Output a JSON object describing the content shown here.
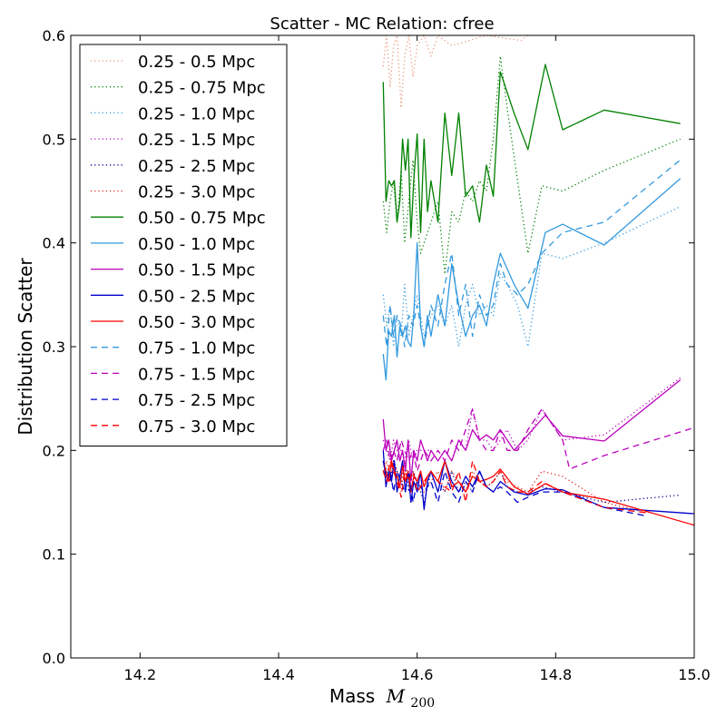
{
  "chart_data": {
    "type": "line",
    "title": "Scatter - MC Relation: cfree",
    "xlabel": "Mass",
    "xlabel_math": "M",
    "xlabel_sub": "200",
    "ylabel": "Distribution Scatter",
    "xlim": [
      14.1,
      15.0
    ],
    "ylim": [
      0.0,
      0.6
    ],
    "xticks": [
      "14.2",
      "14.4",
      "14.6",
      "14.8",
      "15.0"
    ],
    "yticks": [
      "0.0",
      "0.1",
      "0.2",
      "0.3",
      "0.4",
      "0.5",
      "0.6"
    ],
    "grid": false,
    "legend_position": "top-left",
    "series": [
      {
        "name": "0.25 - 0.5 Mpc",
        "color": "#e9967a",
        "dash": "dotted",
        "x": [
          14.551,
          14.556,
          14.561,
          14.566,
          14.571,
          14.577,
          14.582,
          14.588,
          14.594,
          14.6,
          14.61,
          14.62,
          14.63,
          14.65,
          14.7,
          14.75,
          14.76
        ],
        "y": [
          0.57,
          0.6,
          0.55,
          0.59,
          0.6,
          0.53,
          0.58,
          0.6,
          0.56,
          0.59,
          0.6,
          0.58,
          0.6,
          0.59,
          0.6,
          0.595,
          0.6
        ]
      },
      {
        "name": "0.25 - 0.75 Mpc",
        "color": "#008000",
        "dash": "dotted",
        "x": [
          14.551,
          14.556,
          14.561,
          14.566,
          14.571,
          14.577,
          14.582,
          14.588,
          14.594,
          14.6,
          14.605,
          14.61,
          14.62,
          14.63,
          14.64,
          14.65,
          14.66,
          14.67,
          14.68,
          14.69,
          14.7,
          14.71,
          14.72,
          14.73,
          14.745,
          14.76,
          14.78,
          14.81,
          14.87,
          14.98
        ],
        "y": [
          0.44,
          0.41,
          0.44,
          0.46,
          0.42,
          0.47,
          0.4,
          0.44,
          0.48,
          0.42,
          0.39,
          0.4,
          0.42,
          0.44,
          0.37,
          0.43,
          0.42,
          0.45,
          0.44,
          0.46,
          0.45,
          0.5,
          0.58,
          0.53,
          0.46,
          0.39,
          0.455,
          0.45,
          0.47,
          0.5
        ]
      },
      {
        "name": "0.25 - 1.0 Mpc",
        "color": "#3399dd",
        "dash": "dotted",
        "x": [
          14.551,
          14.556,
          14.561,
          14.566,
          14.571,
          14.577,
          14.582,
          14.588,
          14.594,
          14.6,
          14.61,
          14.62,
          14.63,
          14.64,
          14.65,
          14.66,
          14.67,
          14.68,
          14.69,
          14.7,
          14.71,
          14.72,
          14.73,
          14.745,
          14.76,
          14.78,
          14.81,
          14.87,
          14.98
        ],
        "y": [
          0.35,
          0.32,
          0.34,
          0.3,
          0.33,
          0.31,
          0.36,
          0.31,
          0.33,
          0.35,
          0.31,
          0.33,
          0.34,
          0.32,
          0.34,
          0.3,
          0.34,
          0.36,
          0.33,
          0.34,
          0.33,
          0.37,
          0.36,
          0.34,
          0.3,
          0.39,
          0.385,
          0.4,
          0.435
        ]
      },
      {
        "name": "0.25 - 1.5 Mpc",
        "color": "#bb00bb",
        "dash": "dotted",
        "x": [
          14.551,
          14.556,
          14.561,
          14.566,
          14.571,
          14.577,
          14.582,
          14.588,
          14.594,
          14.6,
          14.61,
          14.62,
          14.63,
          14.64,
          14.65,
          14.66,
          14.67,
          14.68,
          14.69,
          14.7,
          14.71,
          14.72,
          14.73,
          14.745,
          14.76,
          14.78,
          14.81,
          14.87,
          14.98
        ],
        "y": [
          0.21,
          0.2,
          0.19,
          0.21,
          0.2,
          0.2,
          0.19,
          0.21,
          0.19,
          0.2,
          0.2,
          0.2,
          0.19,
          0.2,
          0.19,
          0.21,
          0.2,
          0.24,
          0.21,
          0.21,
          0.2,
          0.21,
          0.22,
          0.2,
          0.21,
          0.24,
          0.21,
          0.215,
          0.27
        ]
      },
      {
        "name": "0.25 - 2.5 Mpc",
        "color": "#000099",
        "dash": "dotted",
        "x": [
          14.551,
          14.556,
          14.561,
          14.566,
          14.571,
          14.577,
          14.582,
          14.588,
          14.594,
          14.6,
          14.61,
          14.62,
          14.63,
          14.64,
          14.65,
          14.66,
          14.67,
          14.68,
          14.69,
          14.7,
          14.71,
          14.72,
          14.73,
          14.745,
          14.76,
          14.78,
          14.81,
          14.87,
          14.98
        ],
        "y": [
          0.19,
          0.18,
          0.17,
          0.19,
          0.18,
          0.17,
          0.19,
          0.16,
          0.18,
          0.17,
          0.15,
          0.18,
          0.17,
          0.16,
          0.18,
          0.16,
          0.17,
          0.16,
          0.18,
          0.165,
          0.17,
          0.18,
          0.165,
          0.16,
          0.16,
          0.165,
          0.16,
          0.15,
          0.157
        ]
      },
      {
        "name": "0.25 - 3.0 Mpc",
        "color": "#dd2222",
        "dash": "dotted",
        "x": [
          14.551,
          14.556,
          14.561,
          14.566,
          14.571,
          14.577,
          14.582,
          14.588,
          14.594,
          14.6,
          14.61,
          14.62,
          14.63,
          14.64,
          14.65,
          14.66,
          14.67,
          14.68,
          14.69,
          14.7,
          14.71,
          14.72,
          14.73,
          14.745,
          14.76,
          14.78,
          14.81,
          14.87,
          14.93
        ],
        "y": [
          0.18,
          0.19,
          0.17,
          0.19,
          0.18,
          0.16,
          0.19,
          0.17,
          0.18,
          0.17,
          0.16,
          0.17,
          0.18,
          0.16,
          0.18,
          0.17,
          0.16,
          0.18,
          0.17,
          0.165,
          0.17,
          0.18,
          0.17,
          0.165,
          0.16,
          0.18,
          0.175,
          0.15,
          0.14
        ]
      },
      {
        "name": "0.50 - 0.75 Mpc",
        "color": "#008000",
        "dash": "solid",
        "x": [
          14.551,
          14.555,
          14.559,
          14.563,
          14.567,
          14.571,
          14.575,
          14.579,
          14.583,
          14.587,
          14.591,
          14.595,
          14.6,
          14.605,
          14.61,
          14.615,
          14.62,
          14.63,
          14.64,
          14.65,
          14.66,
          14.67,
          14.68,
          14.69,
          14.7,
          14.71,
          14.72,
          14.74,
          14.76,
          14.785,
          14.81,
          14.87,
          14.98
        ],
        "y": [
          0.555,
          0.44,
          0.46,
          0.455,
          0.46,
          0.42,
          0.44,
          0.5,
          0.47,
          0.5,
          0.405,
          0.46,
          0.505,
          0.41,
          0.5,
          0.43,
          0.46,
          0.42,
          0.525,
          0.465,
          0.525,
          0.445,
          0.455,
          0.42,
          0.475,
          0.445,
          0.565,
          0.525,
          0.49,
          0.572,
          0.509,
          0.528,
          0.515
        ]
      },
      {
        "name": "0.50 - 1.0 Mpc",
        "color": "#3399dd",
        "dash": "solid",
        "x": [
          14.551,
          14.555,
          14.559,
          14.563,
          14.567,
          14.571,
          14.575,
          14.579,
          14.583,
          14.587,
          14.591,
          14.595,
          14.6,
          14.605,
          14.61,
          14.615,
          14.62,
          14.63,
          14.64,
          14.65,
          14.66,
          14.67,
          14.68,
          14.69,
          14.7,
          14.71,
          14.72,
          14.74,
          14.76,
          14.785,
          14.81,
          14.87,
          14.98
        ],
        "y": [
          0.293,
          0.268,
          0.315,
          0.31,
          0.33,
          0.29,
          0.32,
          0.31,
          0.32,
          0.305,
          0.3,
          0.33,
          0.4,
          0.32,
          0.3,
          0.33,
          0.31,
          0.35,
          0.32,
          0.38,
          0.34,
          0.31,
          0.33,
          0.34,
          0.32,
          0.36,
          0.39,
          0.36,
          0.337,
          0.41,
          0.418,
          0.398,
          0.462
        ]
      },
      {
        "name": "0.50 - 1.5 Mpc",
        "color": "#bb00bb",
        "dash": "solid",
        "x": [
          14.551,
          14.555,
          14.559,
          14.563,
          14.567,
          14.571,
          14.575,
          14.579,
          14.583,
          14.587,
          14.591,
          14.595,
          14.6,
          14.605,
          14.61,
          14.615,
          14.62,
          14.63,
          14.64,
          14.65,
          14.66,
          14.67,
          14.68,
          14.69,
          14.7,
          14.71,
          14.72,
          14.74,
          14.76,
          14.785,
          14.81,
          14.87,
          14.98
        ],
        "y": [
          0.23,
          0.2,
          0.21,
          0.19,
          0.2,
          0.21,
          0.19,
          0.2,
          0.18,
          0.21,
          0.17,
          0.2,
          0.19,
          0.21,
          0.2,
          0.19,
          0.2,
          0.19,
          0.2,
          0.19,
          0.21,
          0.2,
          0.22,
          0.21,
          0.215,
          0.21,
          0.22,
          0.2,
          0.215,
          0.234,
          0.214,
          0.209,
          0.268
        ]
      },
      {
        "name": "0.50 - 2.5 Mpc",
        "color": "#0000cc",
        "dash": "solid",
        "x": [
          14.551,
          14.555,
          14.559,
          14.563,
          14.567,
          14.571,
          14.575,
          14.579,
          14.583,
          14.587,
          14.591,
          14.595,
          14.6,
          14.605,
          14.61,
          14.615,
          14.62,
          14.63,
          14.64,
          14.65,
          14.66,
          14.67,
          14.68,
          14.69,
          14.7,
          14.71,
          14.72,
          14.74,
          14.76,
          14.785,
          14.81,
          14.87,
          15.0
        ],
        "y": [
          0.2,
          0.165,
          0.18,
          0.17,
          0.19,
          0.16,
          0.175,
          0.19,
          0.16,
          0.18,
          0.15,
          0.17,
          0.16,
          0.18,
          0.143,
          0.17,
          0.18,
          0.16,
          0.19,
          0.17,
          0.16,
          0.175,
          0.165,
          0.18,
          0.165,
          0.16,
          0.17,
          0.16,
          0.157,
          0.163,
          0.162,
          0.145,
          0.139
        ]
      },
      {
        "name": "0.50 - 3.0 Mpc",
        "color": "#ff0000",
        "dash": "solid",
        "x": [
          14.551,
          14.555,
          14.559,
          14.563,
          14.567,
          14.571,
          14.575,
          14.579,
          14.583,
          14.587,
          14.591,
          14.595,
          14.6,
          14.605,
          14.61,
          14.615,
          14.62,
          14.63,
          14.64,
          14.65,
          14.66,
          14.67,
          14.68,
          14.69,
          14.7,
          14.71,
          14.72,
          14.74,
          14.76,
          14.785,
          14.81,
          14.87,
          15.0
        ],
        "y": [
          0.19,
          0.18,
          0.17,
          0.19,
          0.18,
          0.175,
          0.165,
          0.185,
          0.17,
          0.18,
          0.16,
          0.175,
          0.17,
          0.18,
          0.165,
          0.175,
          0.18,
          0.17,
          0.19,
          0.165,
          0.17,
          0.16,
          0.175,
          0.17,
          0.172,
          0.175,
          0.182,
          0.165,
          0.158,
          0.168,
          0.16,
          0.153,
          0.128
        ]
      },
      {
        "name": "0.75 - 1.0 Mpc",
        "color": "#3399dd",
        "dash": "dashed",
        "x": [
          14.551,
          14.556,
          14.561,
          14.566,
          14.571,
          14.577,
          14.582,
          14.588,
          14.594,
          14.6,
          14.61,
          14.62,
          14.63,
          14.64,
          14.65,
          14.66,
          14.67,
          14.68,
          14.69,
          14.7,
          14.71,
          14.72,
          14.73,
          14.745,
          14.76,
          14.78,
          14.81,
          14.87,
          14.98
        ],
        "y": [
          0.33,
          0.3,
          0.34,
          0.31,
          0.33,
          0.32,
          0.3,
          0.33,
          0.32,
          0.34,
          0.3,
          0.34,
          0.32,
          0.36,
          0.39,
          0.33,
          0.36,
          0.31,
          0.35,
          0.33,
          0.34,
          0.38,
          0.36,
          0.35,
          0.36,
          0.39,
          0.41,
          0.42,
          0.48
        ]
      },
      {
        "name": "0.75 - 1.5 Mpc",
        "color": "#bb00bb",
        "dash": "dashed",
        "x": [
          14.551,
          14.556,
          14.561,
          14.566,
          14.571,
          14.577,
          14.582,
          14.588,
          14.594,
          14.6,
          14.61,
          14.62,
          14.63,
          14.64,
          14.65,
          14.66,
          14.67,
          14.68,
          14.69,
          14.7,
          14.71,
          14.72,
          14.73,
          14.745,
          14.76,
          14.78,
          14.81,
          14.82,
          14.87,
          15.0
        ],
        "y": [
          0.2,
          0.21,
          0.19,
          0.2,
          0.19,
          0.21,
          0.2,
          0.19,
          0.2,
          0.18,
          0.2,
          0.19,
          0.2,
          0.19,
          0.21,
          0.2,
          0.22,
          0.24,
          0.21,
          0.2,
          0.2,
          0.22,
          0.2,
          0.2,
          0.22,
          0.24,
          0.21,
          0.182,
          0.195,
          0.222
        ]
      },
      {
        "name": "0.75 - 2.5 Mpc",
        "color": "#0000cc",
        "dash": "dashed",
        "x": [
          14.551,
          14.556,
          14.561,
          14.566,
          14.571,
          14.577,
          14.582,
          14.588,
          14.594,
          14.6,
          14.61,
          14.62,
          14.63,
          14.64,
          14.65,
          14.66,
          14.67,
          14.68,
          14.69,
          14.7,
          14.71,
          14.72,
          14.73,
          14.745,
          14.76,
          14.78,
          14.81,
          14.87,
          14.93
        ],
        "y": [
          0.19,
          0.17,
          0.18,
          0.16,
          0.18,
          0.17,
          0.16,
          0.18,
          0.15,
          0.17,
          0.16,
          0.17,
          0.15,
          0.18,
          0.16,
          0.15,
          0.17,
          0.16,
          0.18,
          0.165,
          0.16,
          0.165,
          0.16,
          0.15,
          0.155,
          0.16,
          0.16,
          0.145,
          0.137
        ]
      },
      {
        "name": "0.75 - 3.0 Mpc",
        "color": "#ff0000",
        "dash": "dashed",
        "x": [
          14.551,
          14.556,
          14.561,
          14.566,
          14.571,
          14.577,
          14.582,
          14.588,
          14.594,
          14.6,
          14.61,
          14.62,
          14.63,
          14.64,
          14.65,
          14.66,
          14.67,
          14.68,
          14.69,
          14.7,
          14.71,
          14.72,
          14.73,
          14.745,
          14.76,
          14.78,
          14.81,
          14.87,
          14.93
        ],
        "y": [
          0.18,
          0.17,
          0.19,
          0.18,
          0.17,
          0.155,
          0.18,
          0.17,
          0.18,
          0.16,
          0.17,
          0.18,
          0.17,
          0.165,
          0.16,
          0.18,
          0.15,
          0.19,
          0.17,
          0.165,
          0.17,
          0.18,
          0.165,
          0.16,
          0.16,
          0.17,
          0.16,
          0.145,
          0.14
        ]
      }
    ]
  }
}
